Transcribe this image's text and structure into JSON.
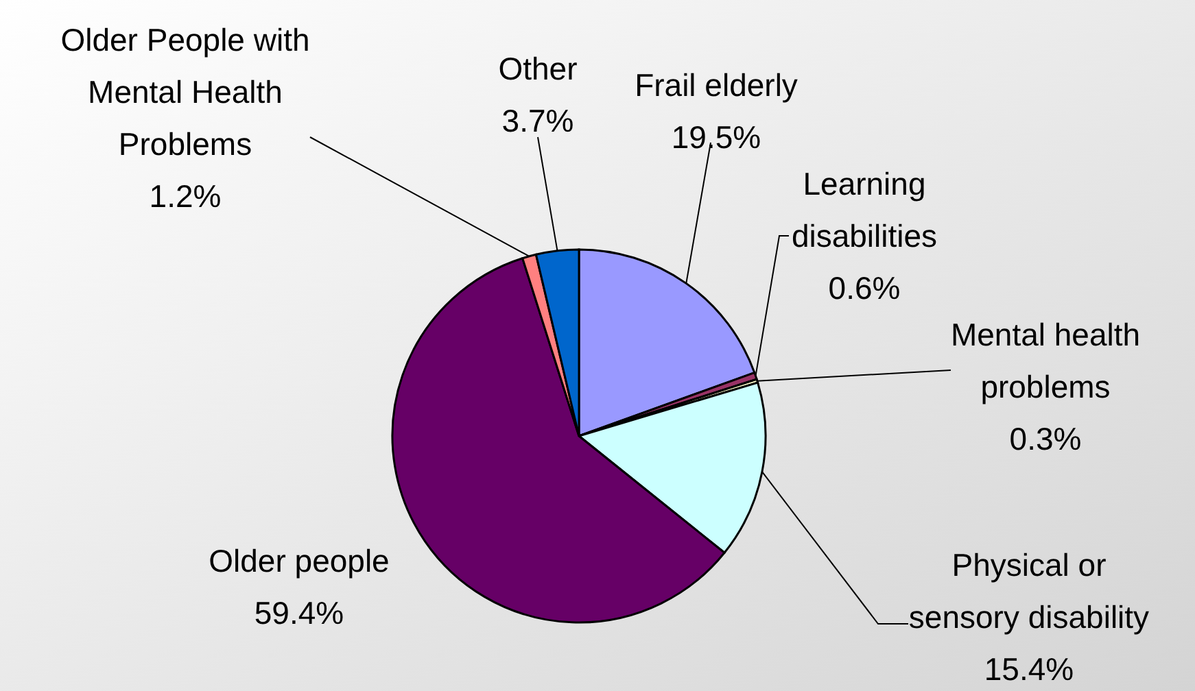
{
  "chart_data": {
    "type": "pie",
    "categories": [
      "Frail elderly",
      "Learning disabilities",
      "Mental health problems",
      "Physical or sensory disability",
      "Older people",
      "Older People with Mental Health Problems",
      "Other"
    ],
    "values": [
      19.5,
      0.6,
      0.3,
      15.4,
      59.4,
      1.2,
      3.7
    ],
    "colors": [
      "#9999ff",
      "#993366",
      "#ffffcc",
      "#ccffff",
      "#660066",
      "#ff8080",
      "#0066cc"
    ],
    "value_labels": [
      "19.5%",
      "0.6%",
      "0.3%",
      "15.4%",
      "59.4%",
      "1.2%",
      "3.7%"
    ]
  }
}
